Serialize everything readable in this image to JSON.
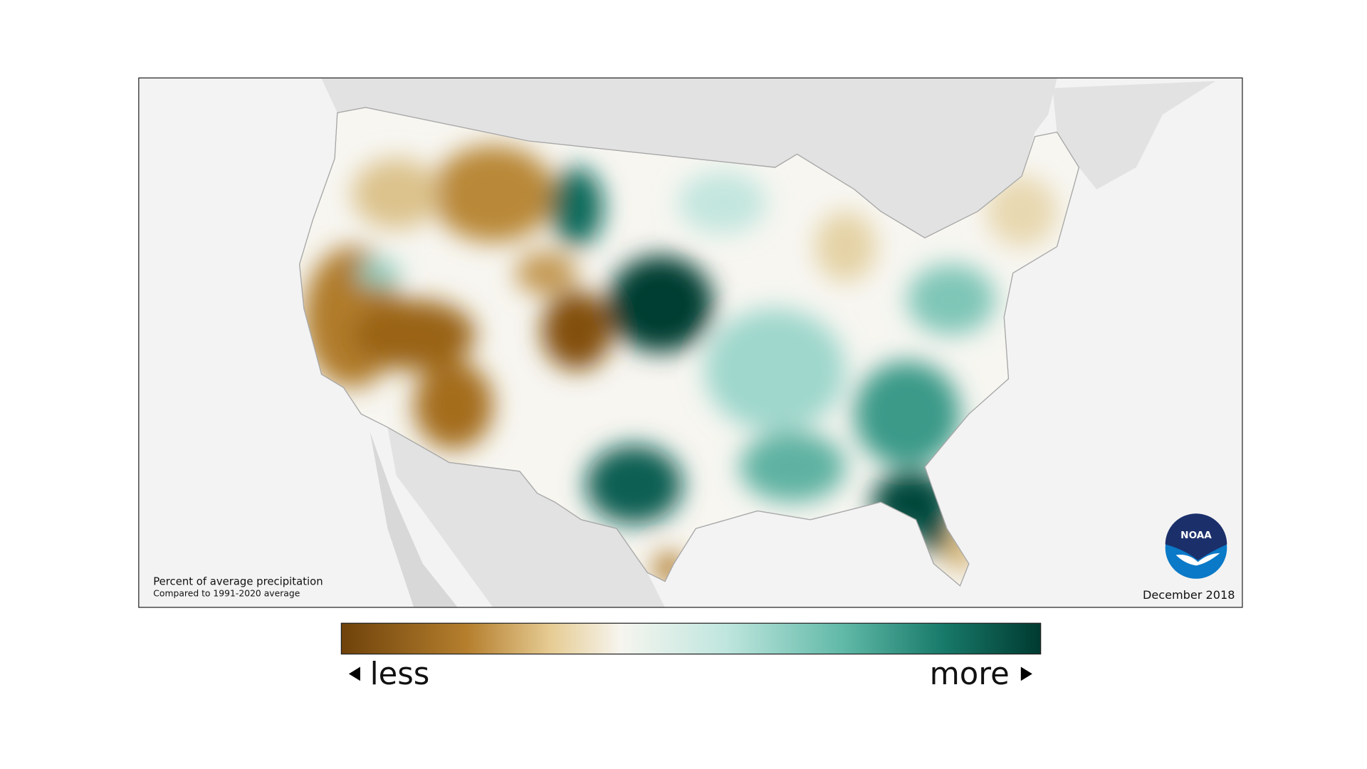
{
  "map": {
    "caption": {
      "title": "Percent of average precipitation",
      "subtitle": "Compared to 1991-2020 average"
    },
    "date": "December 2018"
  },
  "logo": {
    "text": "NOAA"
  },
  "legend": {
    "less": "less",
    "more": "more"
  }
}
